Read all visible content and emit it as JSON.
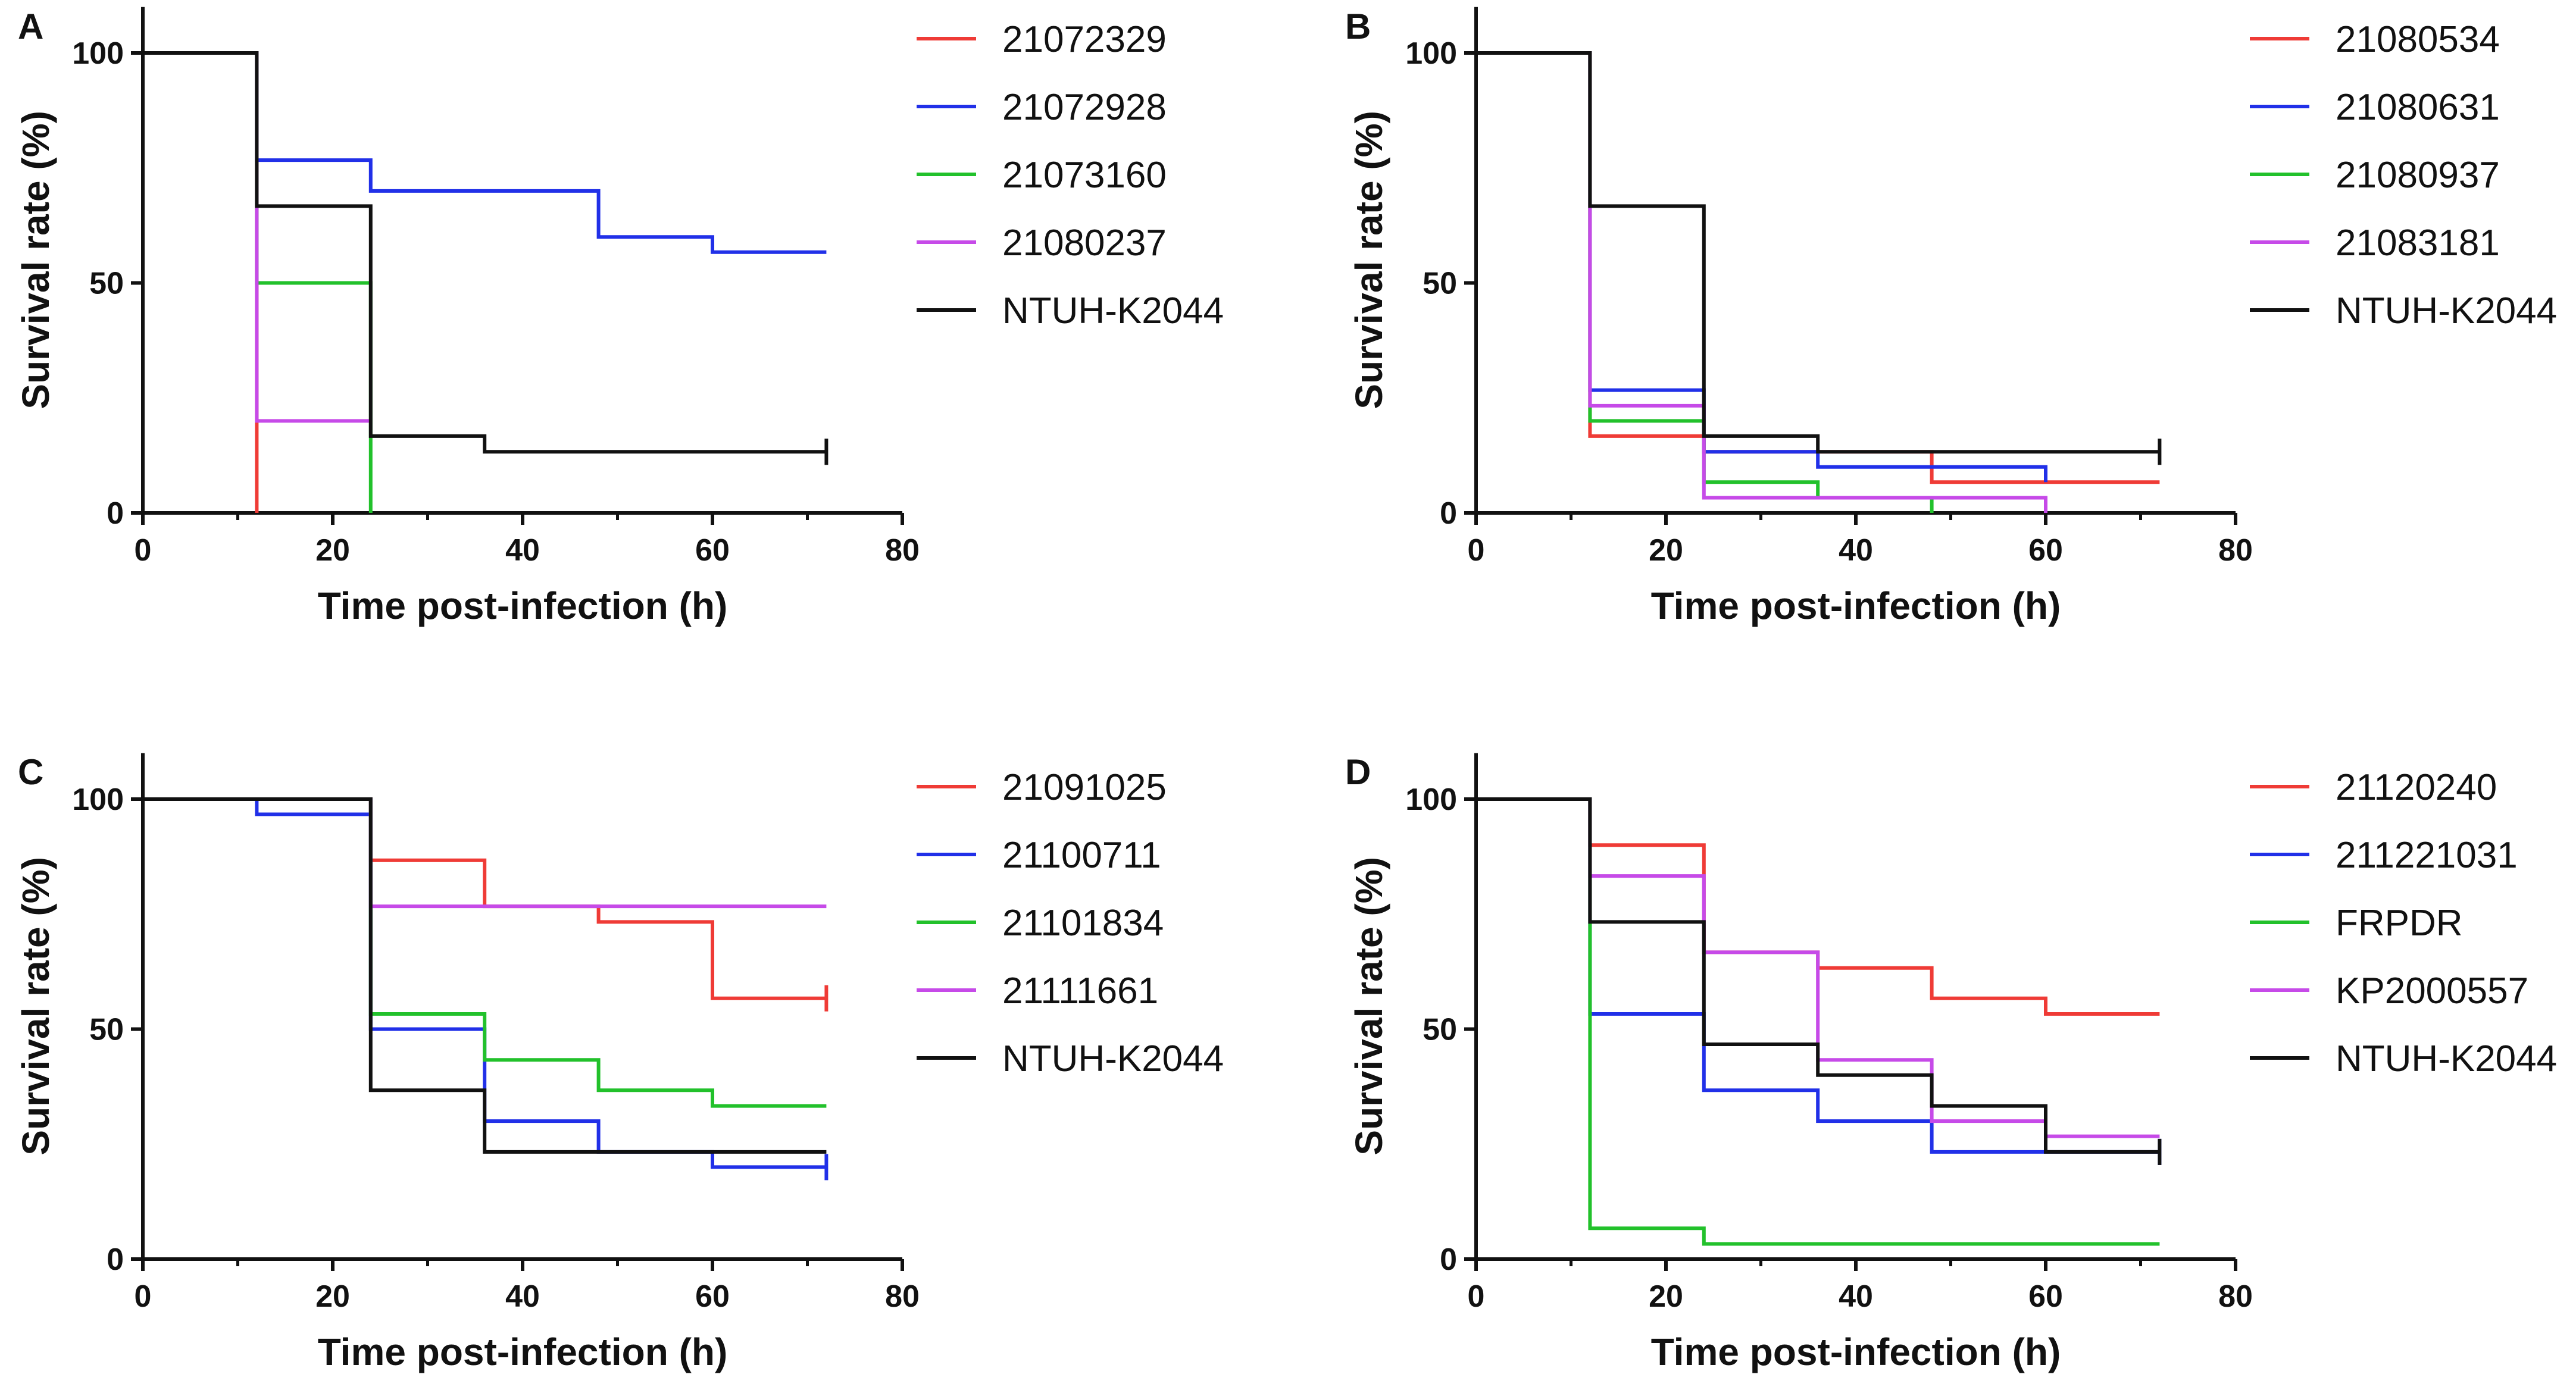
{
  "figure": {
    "panel_count": 4
  },
  "chart_data": [
    {
      "panel_label": "A",
      "type": "line",
      "step": true,
      "xlabel": "Time post-infection (h)",
      "ylabel": "Survival rate (%)",
      "xlim": [
        0,
        80
      ],
      "ylim": [
        0,
        110
      ],
      "xticks": [
        "0",
        "20",
        "40",
        "60",
        "80"
      ],
      "yticks": [
        "0",
        "50",
        "100"
      ],
      "legend_position": "right",
      "series": [
        {
          "name": "21072329",
          "color": "#ef3b36",
          "points": [
            [
              0,
              100
            ],
            [
              12,
              100
            ],
            [
              12,
              0
            ]
          ],
          "end_tick": false
        },
        {
          "name": "21072928",
          "color": "#2130e8",
          "points": [
            [
              0,
              100
            ],
            [
              12,
              100
            ],
            [
              12,
              76.7
            ],
            [
              24,
              76.7
            ],
            [
              24,
              70
            ],
            [
              48,
              70
            ],
            [
              48,
              60
            ],
            [
              60,
              60
            ],
            [
              60,
              56.7
            ],
            [
              72,
              56.7
            ]
          ],
          "end_tick": false
        },
        {
          "name": "21073160",
          "color": "#22c12b",
          "points": [
            [
              0,
              100
            ],
            [
              12,
              100
            ],
            [
              12,
              50
            ],
            [
              24,
              50
            ],
            [
              24,
              0
            ]
          ],
          "end_tick": false
        },
        {
          "name": "21080237",
          "color": "#c64ae8",
          "points": [
            [
              0,
              100
            ],
            [
              12,
              100
            ],
            [
              12,
              20
            ],
            [
              24,
              20
            ]
          ],
          "end_tick": false
        },
        {
          "name": "NTUH-K2044",
          "color": "#111111",
          "points": [
            [
              0,
              100
            ],
            [
              12,
              100
            ],
            [
              12,
              66.7
            ],
            [
              24,
              66.7
            ],
            [
              24,
              16.7
            ],
            [
              36,
              16.7
            ],
            [
              36,
              13.3
            ],
            [
              72,
              13.3
            ]
          ],
          "end_tick": true
        }
      ]
    },
    {
      "panel_label": "B",
      "type": "line",
      "step": true,
      "xlabel": "Time post-infection (h)",
      "ylabel": "Survival rate (%)",
      "xlim": [
        0,
        80
      ],
      "ylim": [
        0,
        110
      ],
      "xticks": [
        "0",
        "20",
        "40",
        "60",
        "80"
      ],
      "yticks": [
        "0",
        "50",
        "100"
      ],
      "legend_position": "right",
      "series": [
        {
          "name": "21080534",
          "color": "#ef3b36",
          "points": [
            [
              0,
              100
            ],
            [
              12,
              100
            ],
            [
              12,
              16.7
            ],
            [
              24,
              16.7
            ],
            [
              24,
              13.3
            ],
            [
              48,
              13.3
            ],
            [
              48,
              6.7
            ],
            [
              72,
              6.7
            ]
          ],
          "end_tick": false
        },
        {
          "name": "21080631",
          "color": "#2130e8",
          "points": [
            [
              0,
              100
            ],
            [
              12,
              100
            ],
            [
              12,
              26.7
            ],
            [
              24,
              26.7
            ],
            [
              24,
              13.3
            ],
            [
              36,
              13.3
            ],
            [
              36,
              10
            ],
            [
              60,
              10
            ],
            [
              60,
              6.7
            ]
          ],
          "end_tick": false
        },
        {
          "name": "21080937",
          "color": "#22c12b",
          "points": [
            [
              0,
              100
            ],
            [
              12,
              100
            ],
            [
              12,
              20
            ],
            [
              24,
              20
            ],
            [
              24,
              6.7
            ],
            [
              36,
              6.7
            ],
            [
              36,
              3.3
            ],
            [
              48,
              3.3
            ],
            [
              48,
              0
            ]
          ],
          "end_tick": false
        },
        {
          "name": "21083181",
          "color": "#c64ae8",
          "points": [
            [
              0,
              100
            ],
            [
              12,
              100
            ],
            [
              12,
              23.3
            ],
            [
              24,
              23.3
            ],
            [
              24,
              3.3
            ],
            [
              60,
              3.3
            ],
            [
              60,
              0
            ]
          ],
          "end_tick": false
        },
        {
          "name": "NTUH-K2044",
          "color": "#111111",
          "points": [
            [
              0,
              100
            ],
            [
              12,
              100
            ],
            [
              12,
              66.7
            ],
            [
              24,
              66.7
            ],
            [
              24,
              16.7
            ],
            [
              36,
              16.7
            ],
            [
              36,
              13.3
            ],
            [
              72,
              13.3
            ]
          ],
          "end_tick": true
        }
      ]
    },
    {
      "panel_label": "C",
      "type": "line",
      "step": true,
      "xlabel": "Time post-infection (h)",
      "ylabel": "Survival rate (%)",
      "xlim": [
        0,
        80
      ],
      "ylim": [
        0,
        110
      ],
      "xticks": [
        "0",
        "20",
        "40",
        "60",
        "80"
      ],
      "yticks": [
        "0",
        "50",
        "100"
      ],
      "legend_position": "right",
      "series": [
        {
          "name": "21091025",
          "color": "#ef3b36",
          "points": [
            [
              0,
              100
            ],
            [
              24,
              100
            ],
            [
              24,
              86.7
            ],
            [
              36,
              86.7
            ],
            [
              36,
              76.7
            ],
            [
              48,
              76.7
            ],
            [
              48,
              73.3
            ],
            [
              60,
              73.3
            ],
            [
              60,
              56.7
            ],
            [
              72,
              56.7
            ]
          ],
          "end_tick": true
        },
        {
          "name": "21100711",
          "color": "#2130e8",
          "points": [
            [
              0,
              100
            ],
            [
              12,
              100
            ],
            [
              12,
              96.7
            ],
            [
              24,
              96.7
            ],
            [
              24,
              50
            ],
            [
              36,
              50
            ],
            [
              36,
              30
            ],
            [
              48,
              30
            ],
            [
              48,
              23.3
            ],
            [
              60,
              23.3
            ],
            [
              60,
              20
            ],
            [
              72,
              20
            ]
          ],
          "end_tick": true
        },
        {
          "name": "21101834",
          "color": "#22c12b",
          "points": [
            [
              0,
              100
            ],
            [
              24,
              100
            ],
            [
              24,
              53.3
            ],
            [
              36,
              53.3
            ],
            [
              36,
              43.3
            ],
            [
              48,
              43.3
            ],
            [
              48,
              36.7
            ],
            [
              60,
              36.7
            ],
            [
              60,
              33.3
            ],
            [
              72,
              33.3
            ]
          ],
          "end_tick": false
        },
        {
          "name": "21111661",
          "color": "#c64ae8",
          "points": [
            [
              0,
              100
            ],
            [
              24,
              100
            ],
            [
              24,
              76.7
            ],
            [
              72,
              76.7
            ]
          ],
          "end_tick": false
        },
        {
          "name": "NTUH-K2044",
          "color": "#111111",
          "points": [
            [
              0,
              100
            ],
            [
              24,
              100
            ],
            [
              24,
              36.7
            ],
            [
              36,
              36.7
            ],
            [
              36,
              23.3
            ],
            [
              72,
              23.3
            ]
          ],
          "end_tick": false
        }
      ]
    },
    {
      "panel_label": "D",
      "type": "line",
      "step": true,
      "xlabel": "Time post-infection (h)",
      "ylabel": "Survival rate (%)",
      "xlim": [
        0,
        80
      ],
      "ylim": [
        0,
        110
      ],
      "xticks": [
        "0",
        "20",
        "40",
        "60",
        "80"
      ],
      "yticks": [
        "0",
        "50",
        "100"
      ],
      "legend_position": "right",
      "series": [
        {
          "name": "21120240",
          "color": "#ef3b36",
          "points": [
            [
              0,
              100
            ],
            [
              12,
              100
            ],
            [
              12,
              90
            ],
            [
              24,
              90
            ],
            [
              24,
              66.7
            ],
            [
              36,
              66.7
            ],
            [
              36,
              63.3
            ],
            [
              48,
              63.3
            ],
            [
              48,
              56.7
            ],
            [
              60,
              56.7
            ],
            [
              60,
              53.3
            ],
            [
              72,
              53.3
            ]
          ],
          "end_tick": false
        },
        {
          "name": "211221031",
          "color": "#2130e8",
          "points": [
            [
              0,
              100
            ],
            [
              12,
              100
            ],
            [
              12,
              53.3
            ],
            [
              24,
              53.3
            ],
            [
              24,
              36.7
            ],
            [
              36,
              36.7
            ],
            [
              36,
              30
            ],
            [
              48,
              30
            ],
            [
              48,
              23.3
            ],
            [
              72,
              23.3
            ]
          ],
          "end_tick": true
        },
        {
          "name": "FRPDR",
          "color": "#22c12b",
          "points": [
            [
              0,
              100
            ],
            [
              12,
              100
            ],
            [
              12,
              6.7
            ],
            [
              24,
              6.7
            ],
            [
              24,
              3.3
            ],
            [
              72,
              3.3
            ]
          ],
          "end_tick": false
        },
        {
          "name": "KP2000557",
          "color": "#c64ae8",
          "points": [
            [
              0,
              100
            ],
            [
              12,
              100
            ],
            [
              12,
              83.3
            ],
            [
              24,
              83.3
            ],
            [
              24,
              66.7
            ],
            [
              36,
              66.7
            ],
            [
              36,
              43.3
            ],
            [
              48,
              43.3
            ],
            [
              48,
              30
            ],
            [
              60,
              30
            ],
            [
              60,
              26.7
            ],
            [
              72,
              26.7
            ]
          ],
          "end_tick": false
        },
        {
          "name": "NTUH-K2044",
          "color": "#111111",
          "points": [
            [
              0,
              100
            ],
            [
              12,
              100
            ],
            [
              12,
              73.3
            ],
            [
              24,
              73.3
            ],
            [
              24,
              46.7
            ],
            [
              36,
              46.7
            ],
            [
              36,
              40
            ],
            [
              48,
              40
            ],
            [
              48,
              33.3
            ],
            [
              60,
              33.3
            ],
            [
              60,
              23.3
            ],
            [
              72,
              23.3
            ]
          ],
          "end_tick": true
        }
      ]
    }
  ]
}
